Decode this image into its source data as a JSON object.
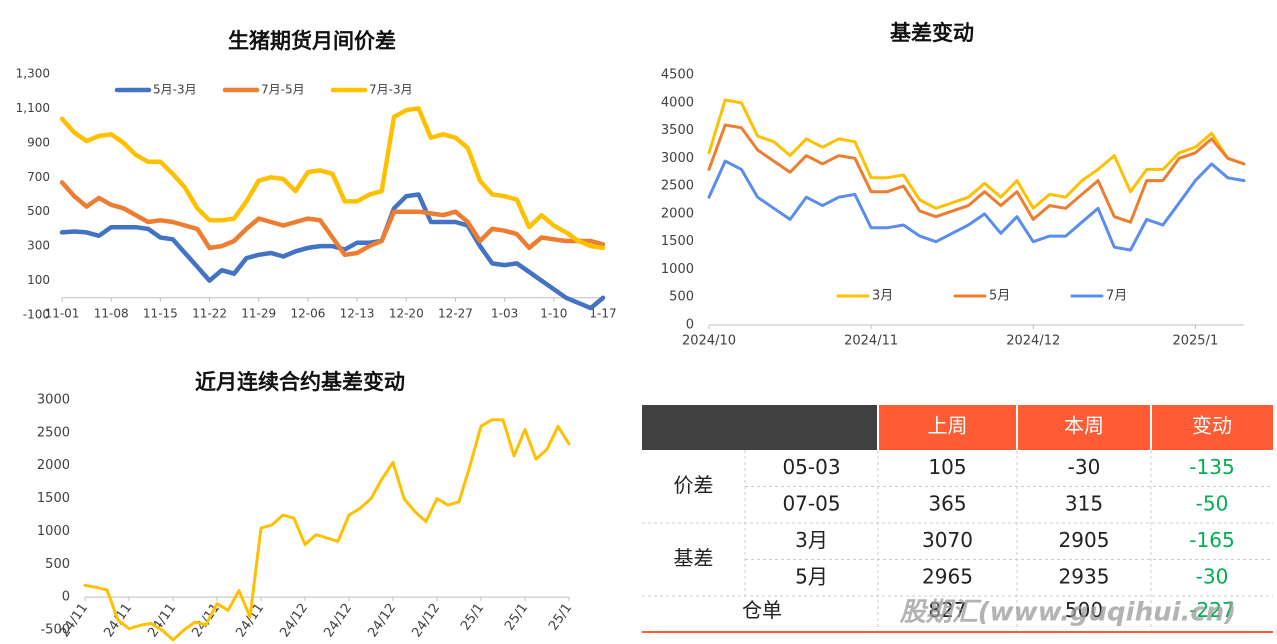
{
  "chart_data": [
    {
      "type": "line",
      "title": "生猪期货月间价差",
      "categories": [
        "11-01",
        null,
        null,
        null,
        "11-08",
        null,
        null,
        null,
        "11-15",
        null,
        null,
        null,
        "11-22",
        null,
        null,
        null,
        "11-29",
        null,
        null,
        null,
        "12-06",
        null,
        null,
        null,
        "12-13",
        null,
        null,
        null,
        "12-20",
        null,
        null,
        null,
        "12-27",
        null,
        null,
        null,
        "1-03",
        null,
        null,
        null,
        "1-10",
        null,
        null,
        null,
        "1-17"
      ],
      "series": [
        {
          "name": "5月-3月",
          "color": "#4472c4",
          "values": [
            380,
            385,
            380,
            360,
            410,
            410,
            410,
            400,
            350,
            340,
            260,
            180,
            100,
            160,
            140,
            230,
            250,
            260,
            240,
            270,
            290,
            300,
            300,
            280,
            320,
            320,
            330,
            520,
            590,
            600,
            440,
            440,
            440,
            420,
            300,
            200,
            190,
            200,
            150,
            100,
            50,
            0,
            -30,
            -60,
            0
          ]
        },
        {
          "name": "7月-5月",
          "color": "#ed7d31",
          "values": [
            670,
            590,
            530,
            580,
            540,
            520,
            480,
            440,
            450,
            440,
            420,
            400,
            290,
            300,
            330,
            400,
            460,
            440,
            420,
            440,
            460,
            450,
            350,
            250,
            260,
            300,
            330,
            500,
            500,
            500,
            490,
            480,
            500,
            440,
            330,
            400,
            390,
            370,
            290,
            350,
            340,
            330,
            330,
            330,
            310
          ]
        },
        {
          "name": "7月-3月",
          "color": "#ffc000",
          "values": [
            1040,
            960,
            910,
            940,
            950,
            900,
            830,
            790,
            790,
            720,
            640,
            520,
            450,
            450,
            460,
            560,
            680,
            700,
            690,
            620,
            730,
            740,
            720,
            560,
            560,
            600,
            620,
            1050,
            1090,
            1100,
            930,
            950,
            930,
            870,
            680,
            600,
            590,
            570,
            410,
            480,
            420,
            380,
            330,
            300,
            290
          ]
        }
      ],
      "ylim": [
        -100,
        1300
      ],
      "yticks": [
        -100,
        100,
        300,
        500,
        700,
        900,
        {
          "value": 1100,
          "label": "1,100"
        },
        {
          "value": 1300,
          "label": "1,300"
        }
      ],
      "legend": "top"
    },
    {
      "type": "line",
      "title": "基差变动",
      "categories": [
        "2024/10",
        null,
        null,
        null,
        null,
        null,
        null,
        null,
        null,
        null,
        "2024/11",
        null,
        null,
        null,
        null,
        null,
        null,
        null,
        null,
        null,
        "2024/12",
        null,
        null,
        null,
        null,
        null,
        null,
        null,
        null,
        null,
        "2025/1",
        null,
        null,
        null
      ],
      "series": [
        {
          "name": "3月",
          "color": "#ffc000",
          "values": [
            3100,
            4050,
            4000,
            3400,
            3300,
            3050,
            3350,
            3200,
            3350,
            3300,
            2650,
            2650,
            2700,
            2250,
            2100,
            2200,
            2300,
            2550,
            2300,
            2600,
            2100,
            2350,
            2300,
            2600,
            2800,
            3050,
            2400,
            2800,
            2800,
            3100,
            3200,
            3450,
            3000,
            2900
          ]
        },
        {
          "name": "5月",
          "color": "#ed7d31",
          "values": [
            2800,
            3600,
            3550,
            3150,
            2950,
            2750,
            3050,
            2900,
            3050,
            3000,
            2400,
            2400,
            2500,
            2050,
            1950,
            2050,
            2150,
            2400,
            2150,
            2400,
            1900,
            2150,
            2100,
            2350,
            2600,
            1950,
            1850,
            2600,
            2600,
            3000,
            3100,
            3350,
            3000,
            2900
          ]
        },
        {
          "name": "7月",
          "color": "#5b8def",
          "values": [
            2300,
            2950,
            2800,
            2300,
            2100,
            1900,
            2300,
            2150,
            2300,
            2350,
            1750,
            1750,
            1800,
            1600,
            1500,
            1650,
            1800,
            2000,
            1650,
            1950,
            1500,
            1600,
            1600,
            1850,
            2100,
            1400,
            1350,
            1900,
            1800,
            2200,
            2600,
            2900,
            2650,
            2600
          ]
        }
      ],
      "ylim": [
        0,
        4500
      ],
      "yticks": [
        0,
        500,
        1000,
        1500,
        2000,
        2500,
        3000,
        3500,
        4000,
        4500
      ],
      "legend": "bottom"
    },
    {
      "type": "line",
      "title": "近月连续合约基差变动",
      "categories": [
        "24/11",
        null,
        null,
        null,
        "24/11",
        null,
        null,
        null,
        "24/11",
        null,
        null,
        null,
        "24/11",
        null,
        null,
        null,
        "24/11",
        null,
        null,
        null,
        "24/12",
        null,
        null,
        null,
        "24/12",
        null,
        null,
        null,
        "24/12",
        null,
        null,
        null,
        "24/12",
        null,
        null,
        null,
        "25/1",
        null,
        null,
        null,
        "25/1",
        null,
        null,
        null,
        "25/1"
      ],
      "color": "#ffc000",
      "values": [
        180,
        150,
        110,
        -350,
        -480,
        -430,
        -400,
        -500,
        -650,
        -500,
        -380,
        -420,
        -100,
        -200,
        100,
        -300,
        1050,
        1100,
        1250,
        1200,
        800,
        950,
        900,
        850,
        1250,
        1350,
        1500,
        1800,
        2050,
        1500,
        1300,
        1150,
        1500,
        1400,
        1450,
        2000,
        2600,
        2700,
        2700,
        2150,
        2550,
        2100,
        2250,
        2600,
        2330
      ],
      "ylim": [
        -500,
        3000
      ],
      "yticks": [
        -500,
        0,
        500,
        1000,
        1500,
        2000,
        2500,
        3000
      ]
    }
  ],
  "table": {
    "header": [
      "上周",
      "本周",
      "变动"
    ],
    "groups": [
      {
        "label": "价差",
        "rows": [
          {
            "name": "05-03",
            "values": [
              105,
              -30,
              -135
            ]
          },
          {
            "name": "07-05",
            "values": [
              365,
              315,
              -50
            ]
          }
        ]
      },
      {
        "label": "基差",
        "rows": [
          {
            "name": "3月",
            "values": [
              3070,
              2905,
              -165
            ]
          },
          {
            "name": "5月",
            "values": [
              2965,
              2935,
              -30
            ]
          }
        ]
      }
    ],
    "total": {
      "name": "仓单",
      "values": [
        827,
        500,
        -227
      ]
    }
  },
  "watermark": "股期汇(www.guqihui.cn)"
}
